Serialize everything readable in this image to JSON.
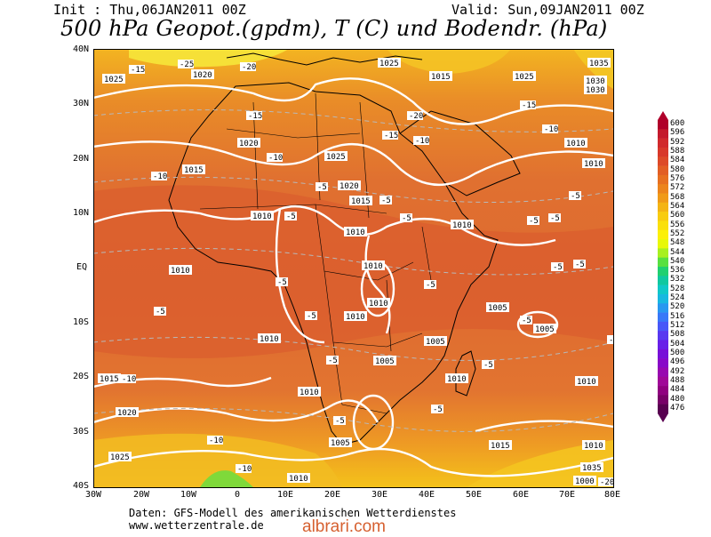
{
  "header": {
    "init": "Init : Thu,06JAN2011 00Z",
    "valid": "Valid: Sun,09JAN2011 00Z",
    "title": "500 hPa Geopot.(gpdm), T (C) und Bodendr. (hPa)"
  },
  "axes": {
    "lat_labels": [
      "40N",
      "30N",
      "20N",
      "10N",
      "EQ",
      "10S",
      "20S",
      "30S",
      "40S"
    ],
    "lon_labels": [
      "30W",
      "20W",
      "10W",
      "0",
      "10E",
      "20E",
      "30E",
      "40E",
      "50E",
      "60E",
      "70E",
      "80E"
    ]
  },
  "colorbar": {
    "levels": [
      "600",
      "596",
      "592",
      "588",
      "584",
      "580",
      "576",
      "572",
      "568",
      "564",
      "560",
      "556",
      "552",
      "548",
      "544",
      "540",
      "536",
      "532",
      "528",
      "524",
      "520",
      "516",
      "512",
      "508",
      "504",
      "500",
      "496",
      "492",
      "488",
      "484",
      "480",
      "476"
    ],
    "colors": [
      "#b0002a",
      "#c41a2c",
      "#d12a2c",
      "#d8382a",
      "#dd4a28",
      "#e25e24",
      "#e77020",
      "#ec841c",
      "#f09a18",
      "#f4b414",
      "#f8cc10",
      "#fae00c",
      "#fcf008",
      "#e8f808",
      "#a8f020",
      "#58e040",
      "#20d070",
      "#10c8a0",
      "#10c8c8",
      "#18b8e0",
      "#2898f0",
      "#3878f8",
      "#4858f8",
      "#5838f0",
      "#6820e8",
      "#7810d8",
      "#8808c8",
      "#9808b0",
      "#a00898",
      "#900080",
      "#780068",
      "#580050"
    ]
  },
  "map": {
    "pressure_labels": [
      "1025",
      "1020",
      "1015",
      "1010",
      "1005",
      "1000",
      "1035",
      "1030",
      "1030"
    ],
    "temp_labels": [
      "-5",
      "-10",
      "-15",
      "-20",
      "-25"
    ]
  },
  "credits": {
    "line1": "Daten: GFS-Modell des amerikanischen Wetterdienstes",
    "line2": "www.wetterzentrale.de"
  },
  "watermark": "albrari.com"
}
